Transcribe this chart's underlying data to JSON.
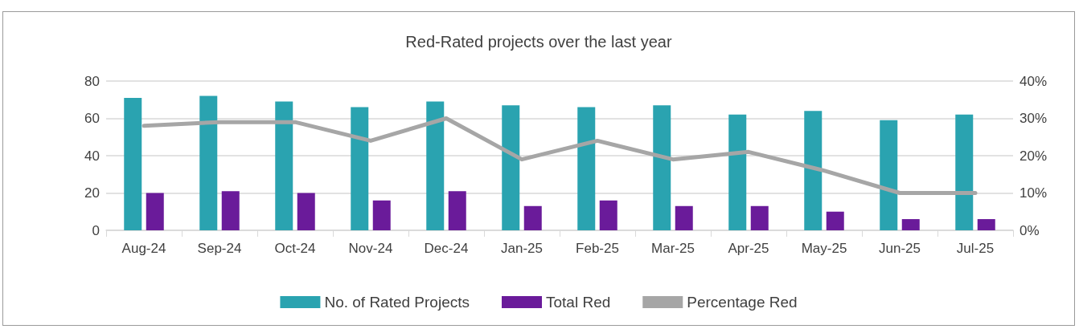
{
  "chart_data": {
    "type": "bar",
    "title": "Red-Rated projects over the last year",
    "categories": [
      "Aug-24",
      "Sep-24",
      "Oct-24",
      "Nov-24",
      "Dec-24",
      "Jan-25",
      "Feb-25",
      "Mar-25",
      "Apr-25",
      "May-25",
      "Jun-25",
      "Jul-25"
    ],
    "series": [
      {
        "name": "No. of Rated Projects",
        "color": "#2aa3b0",
        "values": [
          71,
          72,
          69,
          66,
          69,
          67,
          66,
          67,
          62,
          64,
          59,
          62
        ]
      },
      {
        "name": "Total Red",
        "color": "#6a1b9a",
        "values": [
          20,
          21,
          20,
          16,
          21,
          13,
          16,
          13,
          13,
          10,
          6,
          6
        ]
      },
      {
        "name": "Percentage Red",
        "type": "line",
        "axis": "y2",
        "color": "#a6a6a6",
        "values": [
          28,
          29,
          29,
          24,
          30,
          19,
          24,
          19,
          21,
          16,
          10,
          10
        ]
      }
    ],
    "ylim": [
      0,
      80
    ],
    "yticks": [
      0,
      20,
      40,
      60,
      80
    ],
    "y2lim": [
      0,
      40
    ],
    "y2ticks": [
      {
        "value": 0,
        "label": "0%"
      },
      {
        "value": 10,
        "label": "10%"
      },
      {
        "value": 20,
        "label": "20%"
      },
      {
        "value": 30,
        "label": "30%"
      },
      {
        "value": 40,
        "label": "40%"
      }
    ],
    "grid": "y",
    "legend": "bottom",
    "marker": "none",
    "line_style": "solid"
  }
}
